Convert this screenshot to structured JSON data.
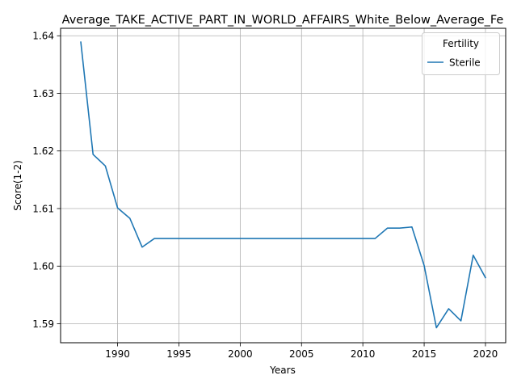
{
  "chart_data": {
    "type": "line",
    "title": "Average_TAKE_ACTIVE_PART_IN_WORLD_AFFAIRS_White_Below_Average_Fe",
    "xlabel": "Years",
    "ylabel": "Score(1-2)",
    "xlim": [
      1985.35,
      2021.65
    ],
    "ylim": [
      1.5867,
      1.6413
    ],
    "xticks": [
      1990,
      1995,
      2000,
      2005,
      2010,
      2015,
      2020
    ],
    "yticks": [
      1.59,
      1.6,
      1.61,
      1.62,
      1.63,
      1.64
    ],
    "ytick_labels": [
      "1.59",
      "1.60",
      "1.61",
      "1.62",
      "1.63",
      "1.64"
    ],
    "grid": true,
    "legend": {
      "title": "Fertility",
      "placement": "top-right"
    },
    "series": [
      {
        "name": "Sterile",
        "color": "#1f77b4",
        "x": [
          1987,
          1988,
          1989,
          1990,
          1991,
          1992,
          1993,
          1994,
          1995,
          1996,
          1997,
          1998,
          1999,
          2000,
          2001,
          2002,
          2003,
          2004,
          2005,
          2006,
          2007,
          2008,
          2009,
          2010,
          2011,
          2012,
          2013,
          2014,
          2015,
          2016,
          2017,
          2018,
          2019,
          2020
        ],
        "y": [
          1.6389,
          1.6194,
          1.6174,
          1.6101,
          1.6083,
          1.6033,
          1.6048,
          1.6048,
          1.6048,
          1.6048,
          1.6048,
          1.6048,
          1.6048,
          1.6048,
          1.6048,
          1.6048,
          1.6048,
          1.6048,
          1.6048,
          1.6048,
          1.6048,
          1.6048,
          1.6048,
          1.6048,
          1.6048,
          1.6066,
          1.6066,
          1.6068,
          1.6001,
          1.5893,
          1.5926,
          1.5905,
          1.6019,
          1.598
        ]
      }
    ]
  }
}
